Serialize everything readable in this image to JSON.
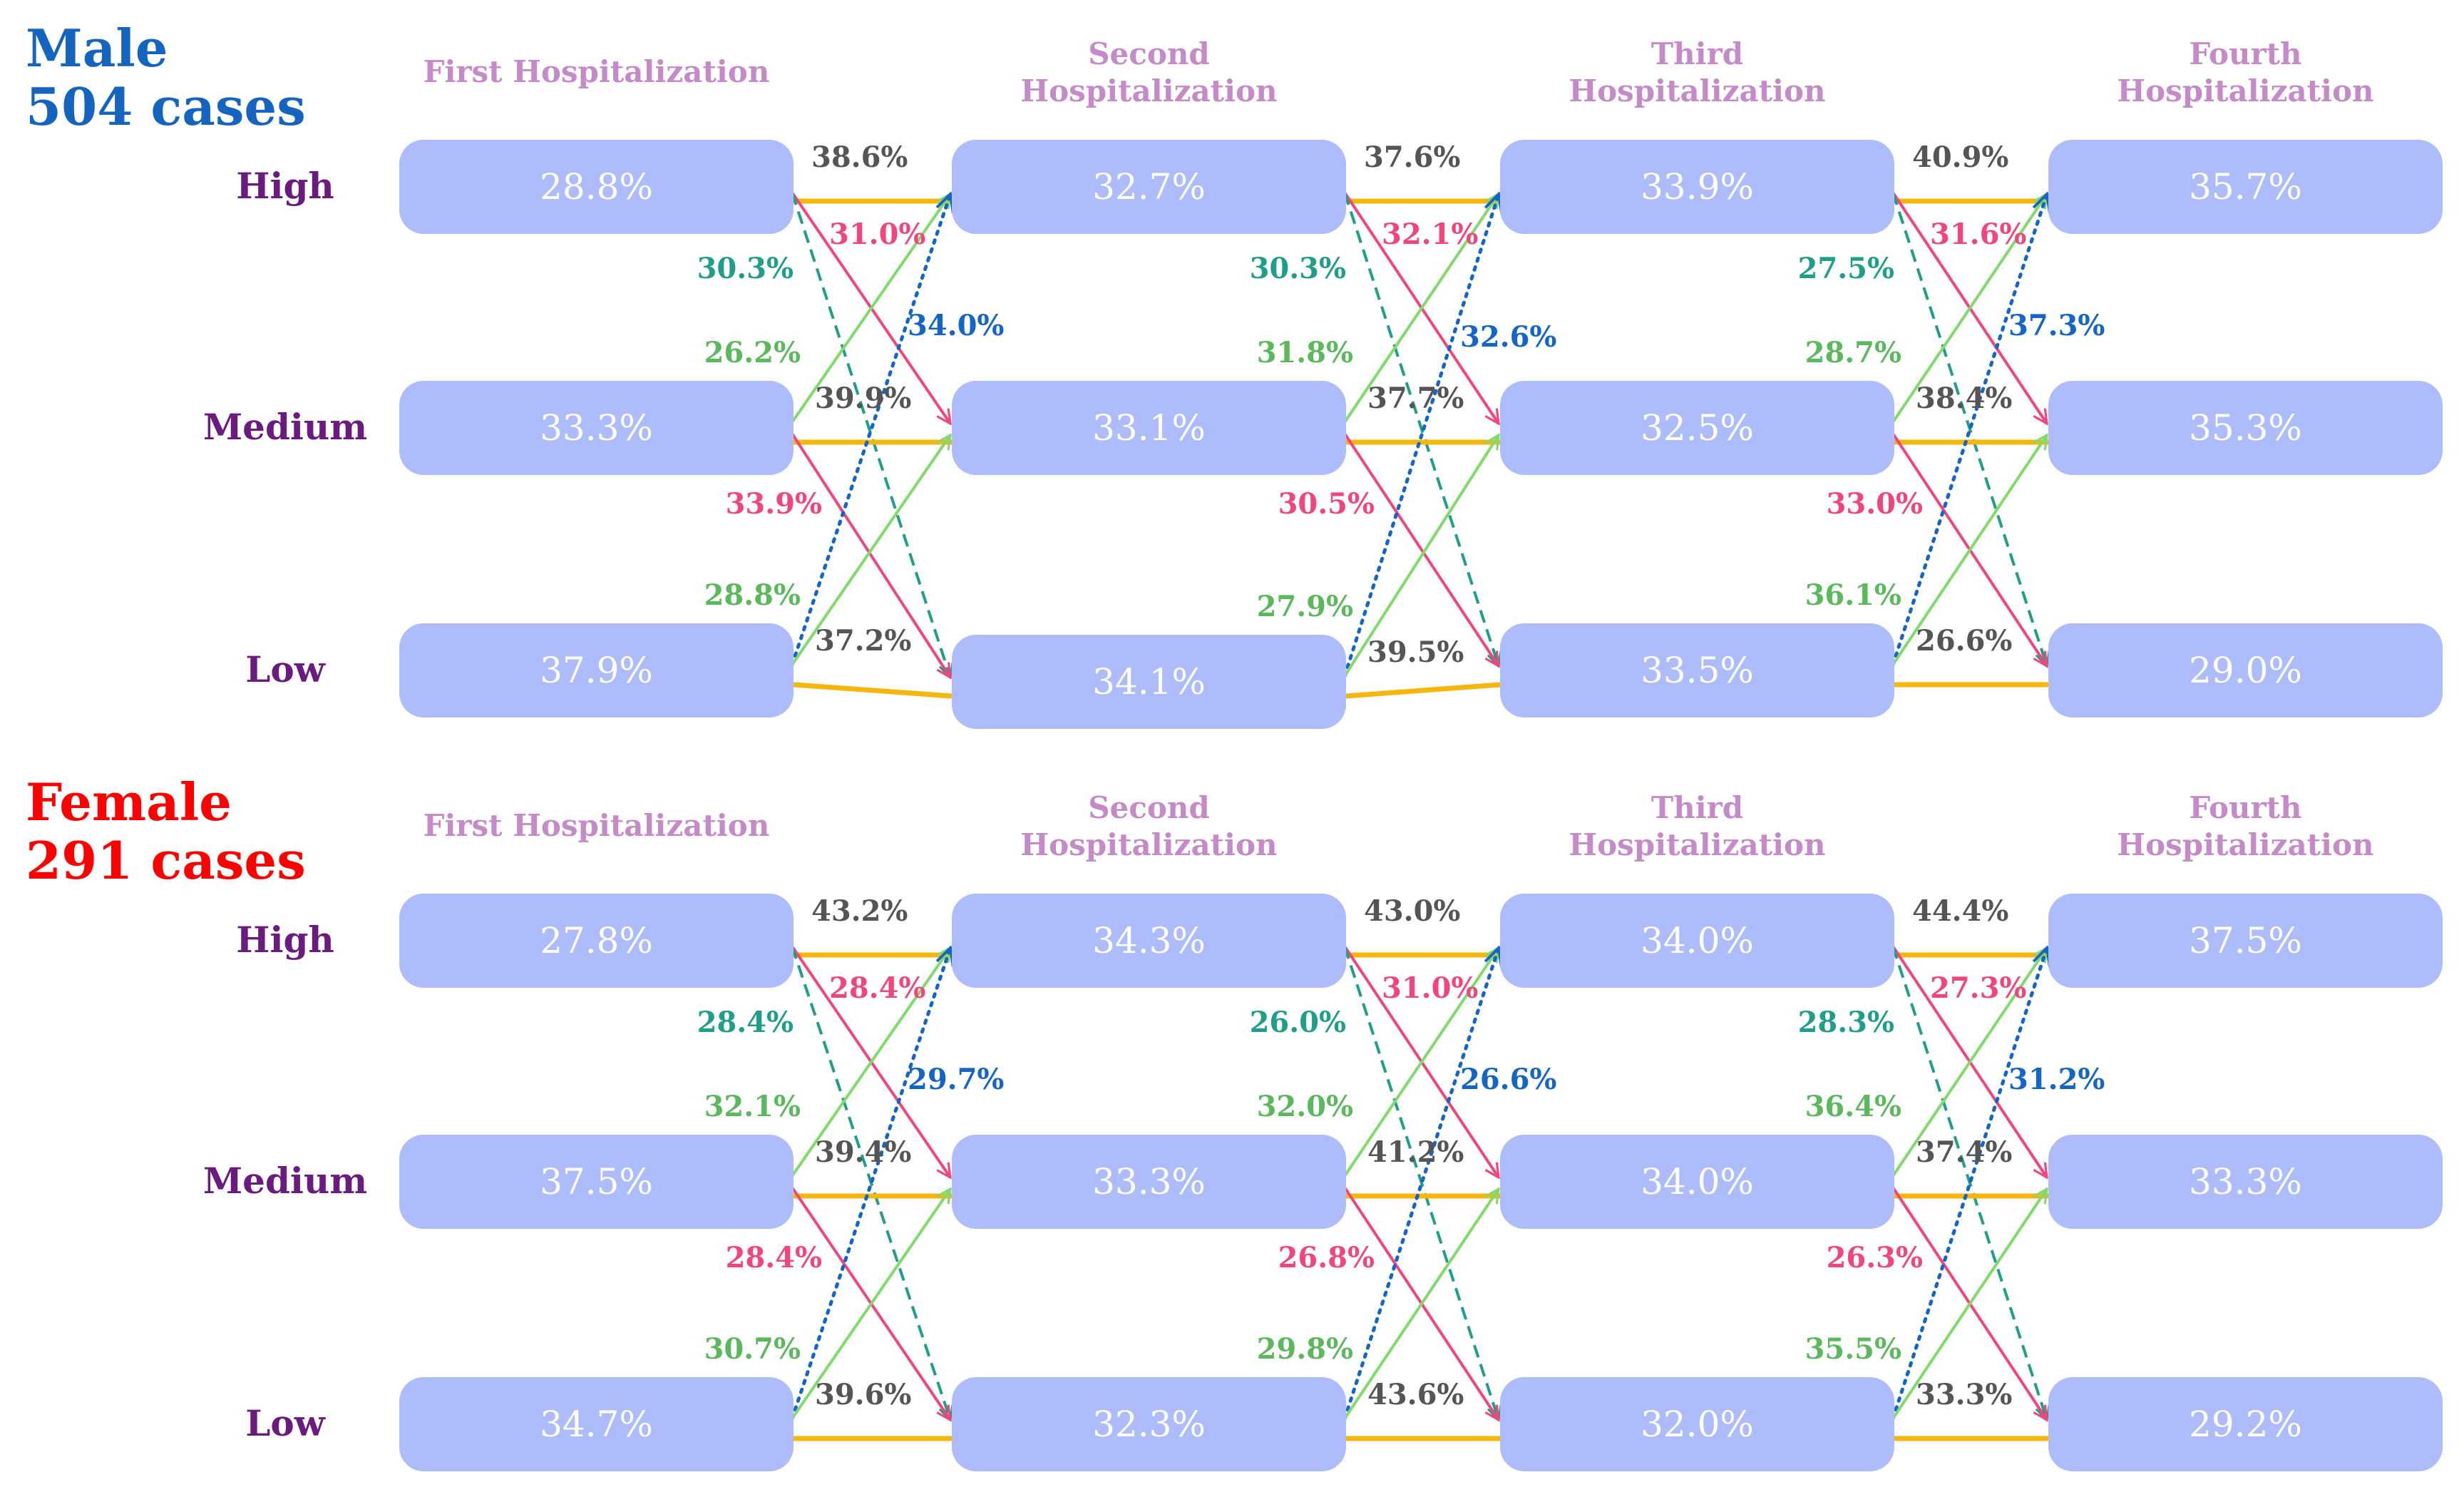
{
  "colors": {
    "stay": "#f6b60e",
    "up_one": "#82d96c",
    "up_two": "#1565c7",
    "down_one": "#f0467c",
    "down_two": "#1f9e8a",
    "male_title": "#1565c0",
    "female_title": "#ff0000",
    "stay_label": "#555555",
    "up_one_label": "#5cb85c"
  },
  "columns": [
    "First Hospitalization",
    "Second Hospitalization",
    "Third Hospitalization",
    "Fourth Hospitalization"
  ],
  "rows": [
    "High",
    "Medium",
    "Low"
  ],
  "groups": [
    {
      "title_line1": "Male",
      "title_line2": "504 cases",
      "column_titles": [
        [
          "First Hospitalization"
        ],
        [
          "Second",
          "Hospitalization"
        ],
        [
          "Third",
          "Hospitalization"
        ],
        [
          "Fourth",
          "Hospitalization"
        ]
      ],
      "nodes": [
        [
          "28.8%",
          "33.3%",
          "37.9%"
        ],
        [
          "32.7%",
          "33.1%",
          "34.1%"
        ],
        [
          "33.9%",
          "32.5%",
          "33.5%"
        ],
        [
          "35.7%",
          "35.3%",
          "29.0%"
        ]
      ],
      "transitions": [
        {
          "hh": "38.6%",
          "hm": "31.0%",
          "hl": "30.3%",
          "mh": "26.2%",
          "mm": "39.9%",
          "ml": "33.9%",
          "lh": "34.0%",
          "lm": "28.8%",
          "ll": "37.2%"
        },
        {
          "hh": "37.6%",
          "hm": "32.1%",
          "hl": "30.3%",
          "mh": "31.8%",
          "mm": "37.7%",
          "ml": "30.5%",
          "lh": "32.6%",
          "lm": "27.9%",
          "ll": "39.5%"
        },
        {
          "hh": "40.9%",
          "hm": "31.6%",
          "hl": "27.5%",
          "mh": "28.7%",
          "mm": "38.4%",
          "ml": "33.0%",
          "lh": "37.3%",
          "lm": "36.1%",
          "ll": "26.6%"
        }
      ]
    },
    {
      "title_line1": "Female",
      "title_line2": "291 cases",
      "column_titles": [
        [
          "First Hospitalization"
        ],
        [
          "Second",
          "Hospitalization"
        ],
        [
          "Third",
          "Hospitalization"
        ],
        [
          "Fourth",
          "Hospitalization"
        ]
      ],
      "nodes": [
        [
          "27.8%",
          "37.5%",
          "34.7%"
        ],
        [
          "34.3%",
          "33.3%",
          "32.3%"
        ],
        [
          "34.0%",
          "34.0%",
          "32.0%"
        ],
        [
          "37.5%",
          "33.3%",
          "29.2%"
        ]
      ],
      "transitions": [
        {
          "hh": "43.2%",
          "hm": "28.4%",
          "hl": "28.4%",
          "mh": "32.1%",
          "mm": "39.4%",
          "ml": "28.4%",
          "lh": "29.7%",
          "lm": "30.7%",
          "ll": "39.6%"
        },
        {
          "hh": "43.0%",
          "hm": "31.0%",
          "hl": "26.0%",
          "mh": "32.0%",
          "mm": "41.2%",
          "ml": "26.8%",
          "lh": "26.6%",
          "lm": "29.8%",
          "ll": "43.6%"
        },
        {
          "hh": "44.4%",
          "hm": "27.3%",
          "hl": "28.3%",
          "mh": "36.4%",
          "mm": "37.4%",
          "ml": "26.3%",
          "lh": "31.2%",
          "lm": "35.5%",
          "ll": "33.3%"
        }
      ]
    }
  ]
}
